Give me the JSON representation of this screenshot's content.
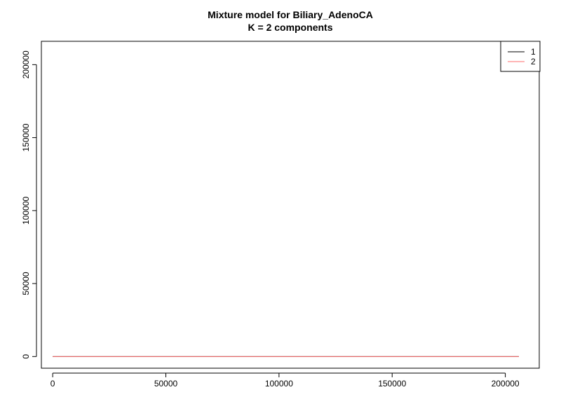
{
  "chart_data": {
    "type": "line",
    "title": "Mixture model for Biliary_AdenoCA",
    "subtitle": "K = 2 components",
    "xlabel": "",
    "ylabel": "",
    "xlim": [
      -5000,
      215000
    ],
    "ylim": [
      -8000,
      216000
    ],
    "x_ticks": [
      0,
      50000,
      100000,
      150000,
      200000
    ],
    "y_ticks": [
      0,
      50000,
      100000,
      150000,
      200000
    ],
    "x_tick_labels": [
      "0",
      "50000",
      "100000",
      "150000",
      "200000"
    ],
    "y_tick_labels": [
      "0",
      "50000",
      "100000",
      "150000",
      "200000"
    ],
    "grid": false,
    "legend_position": "top-right",
    "series": [
      {
        "name": "1",
        "color": "#000000",
        "x": [
          0,
          206000
        ],
        "y": [
          0,
          0
        ]
      },
      {
        "name": "2",
        "color": "#ff6b6b",
        "x": [
          0,
          206000
        ],
        "y": [
          0,
          0
        ]
      }
    ]
  }
}
